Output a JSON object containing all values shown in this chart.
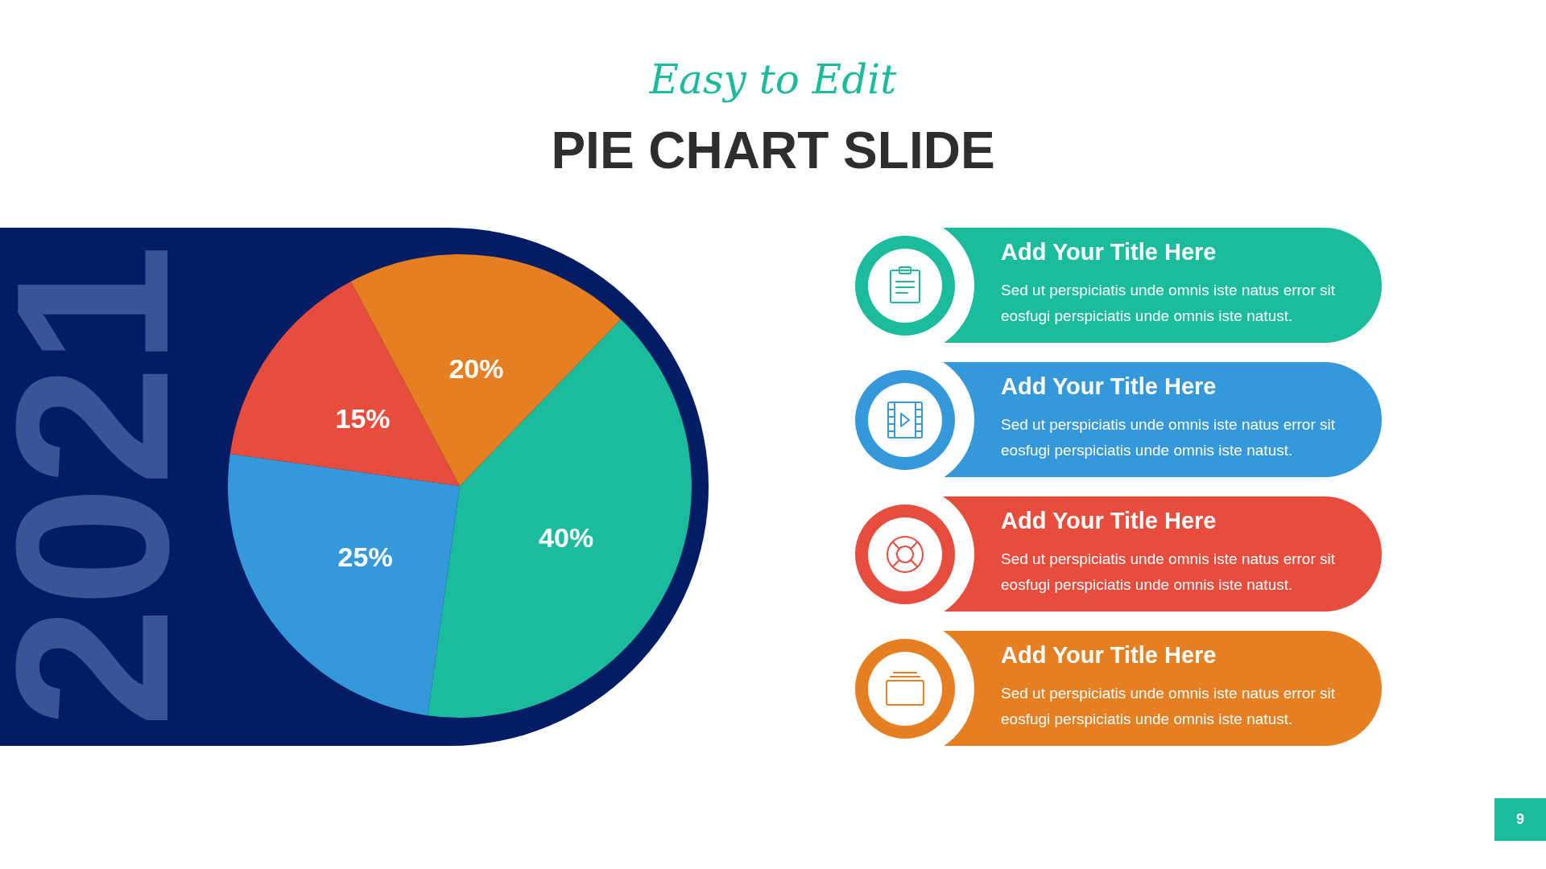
{
  "chart_data": {
    "type": "pie",
    "subtitle": "Easy to Edit",
    "title": "PIE CHART SLIDE",
    "categories": [
      null,
      null,
      null,
      null
    ],
    "values": [
      40,
      25,
      15,
      20
    ],
    "colors": [
      "#1abc9c",
      "#3498db",
      "#e74c3c",
      "#e67e22"
    ],
    "value_labels": [
      "40%",
      "25%",
      "15%",
      "20%"
    ],
    "annotations": [
      "2021",
      "Add Your Title Here",
      "Sed ut perspiciatis unde omnis iste natus error sit eosfugi perspiciatis unde omnis iste natust.",
      "Add Your Title Here",
      "Sed ut perspiciatis unde omnis iste natus error sit eosfugi perspiciatis unde omnis iste natust.",
      "Add Your Title Here",
      "Sed ut perspiciatis unde omnis iste natus error sit eosfugi perspiciatis unde omnis iste natust.",
      "Add Your Title Here",
      "Sed ut perspiciatis unde omnis iste natus error sit eosfugi perspiciatis unde omnis iste natust.",
      "9"
    ]
  }
}
